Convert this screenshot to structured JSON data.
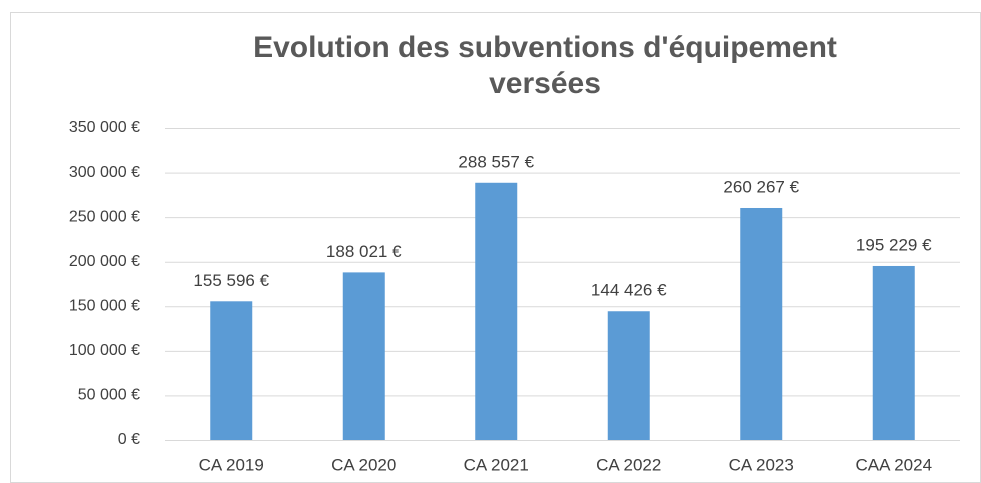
{
  "chart_data": {
    "type": "bar",
    "title": "Evolution des subventions d'équipement versées",
    "categories": [
      "CA 2019",
      "CA 2020",
      "CA 2021",
      "CA 2022",
      "CA 2023",
      "CAA 2024"
    ],
    "values": [
      155596,
      188021,
      288557,
      144426,
      260267,
      195229
    ],
    "value_labels": [
      "155 596 €",
      "188 021 €",
      "288 557 €",
      "144 426 €",
      "260 267 €",
      "195 229 €"
    ],
    "color": "#5b9bd5",
    "ylim": [
      0,
      350000
    ],
    "yticks": [
      {
        "value": 0,
        "label": "0 €"
      },
      {
        "value": 50000,
        "label": "50 000 €"
      },
      {
        "value": 100000,
        "label": "100 000 €"
      },
      {
        "value": 150000,
        "label": "150 000 €"
      },
      {
        "value": 200000,
        "label": "200 000 €"
      },
      {
        "value": 250000,
        "label": "250 000 €"
      },
      {
        "value": 300000,
        "label": "300 000 €"
      },
      {
        "value": 350000,
        "label": "350 000 €"
      }
    ],
    "grid": true
  }
}
